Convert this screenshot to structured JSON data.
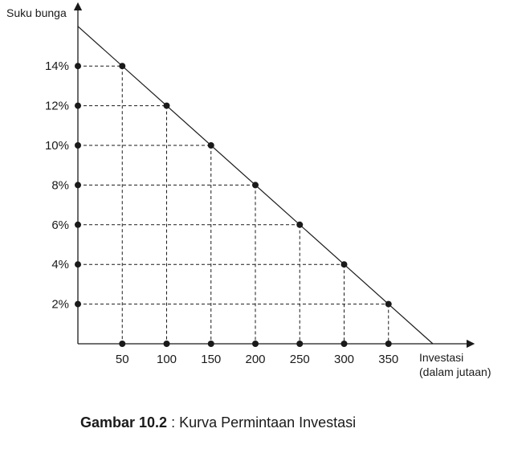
{
  "chart_data": {
    "type": "line",
    "ylabel": "Suku bunga",
    "xlabel_line1": "Investasi",
    "xlabel_line2": "(dalam jutaan)",
    "x_ticks": [
      50,
      100,
      150,
      200,
      250,
      300,
      350
    ],
    "x_tick_labels": [
      "50",
      "100",
      "150",
      "200",
      "250",
      "300",
      "350"
    ],
    "y_ticks": [
      2,
      4,
      6,
      8,
      10,
      12,
      14
    ],
    "y_tick_labels": [
      "2%",
      "4%",
      "6%",
      "8%",
      "10%",
      "12%",
      "14%"
    ],
    "series": [
      {
        "x": [
          50,
          100,
          150,
          200,
          250,
          300,
          350
        ],
        "y": [
          14,
          12,
          10,
          8,
          6,
          4,
          2
        ]
      }
    ],
    "demand_line": {
      "x": [
        0,
        400
      ],
      "y": [
        16,
        0
      ]
    },
    "xlim": [
      0,
      460
    ],
    "ylim": [
      0,
      17
    ],
    "grid": "dashed-guides",
    "colors": {
      "line": "#1a1a1a",
      "guides": "#1a1a1a"
    }
  },
  "caption": {
    "label": "Gambar 10.2",
    "separator": " : ",
    "text": "Kurva Permintaan Investasi"
  }
}
